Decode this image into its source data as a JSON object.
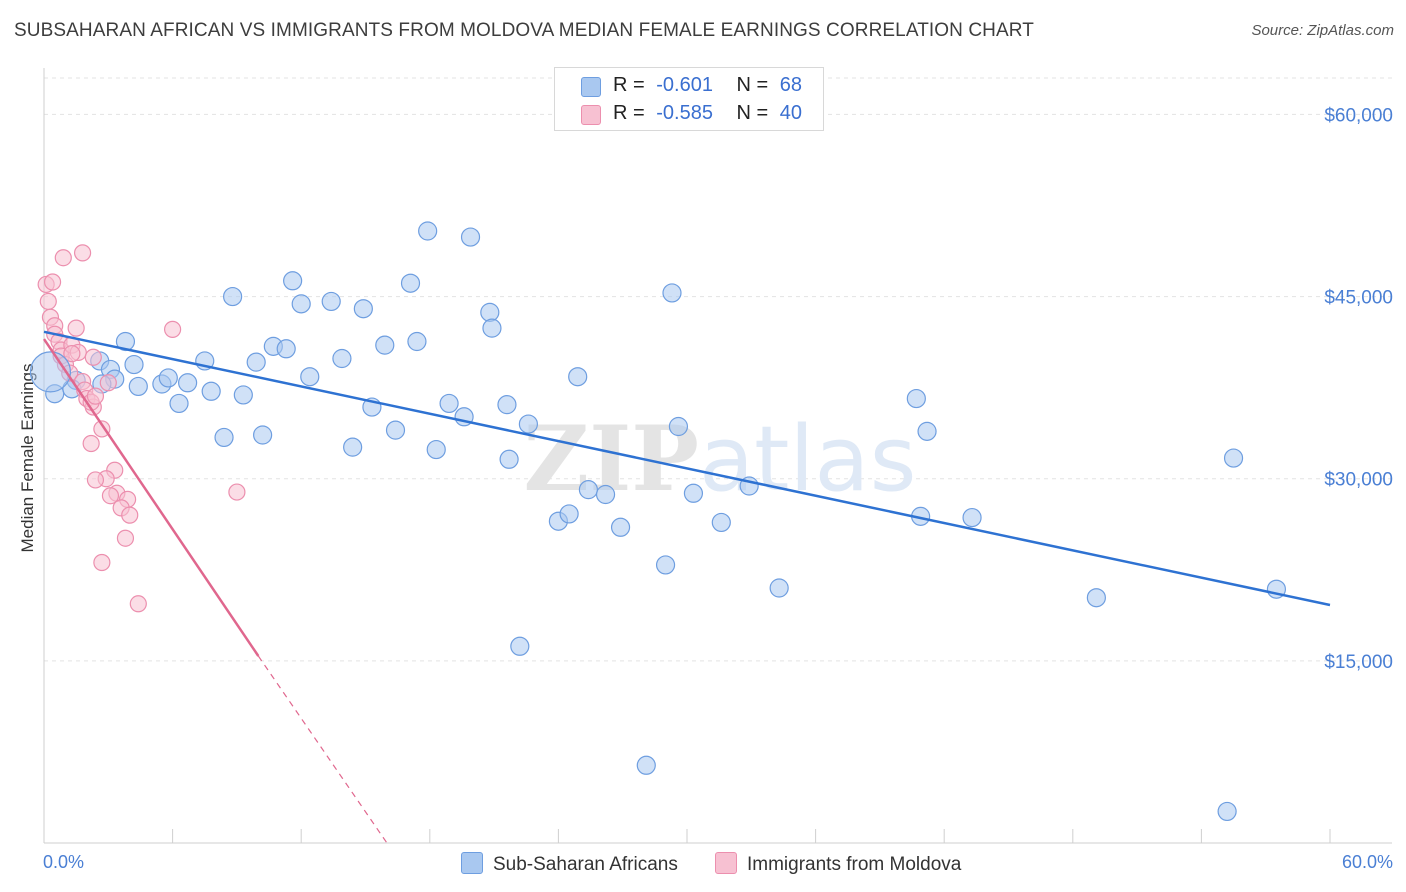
{
  "title": "SUBSAHARAN AFRICAN VS IMMIGRANTS FROM MOLDOVA MEDIAN FEMALE EARNINGS CORRELATION CHART",
  "source": "Source: ZipAtlas.com",
  "watermark": "ZIPatlas",
  "colors": {
    "blue_fill": "#a9c8f0",
    "blue_stroke": "#6e9ee0",
    "blue_line": "#2e72d2",
    "pink_fill": "#f7c1d2",
    "pink_stroke": "#ec8fae",
    "pink_line": "#e0678e",
    "tick_text": "#4a7fd4",
    "grid": "#e3e3e3"
  },
  "legend_top": {
    "rows": [
      {
        "r_label": "R =",
        "r_value": "-0.601",
        "n_label": "N =",
        "n_value": "68",
        "color": "#a9c8f0"
      },
      {
        "r_label": "R =",
        "r_value": "-0.585",
        "n_label": "N =",
        "n_value": "40",
        "color": "#f7c1d2"
      }
    ]
  },
  "legend_bottom": [
    {
      "label": "Sub-Saharan Africans",
      "color": "#a9c8f0"
    },
    {
      "label": "Immigrants from Moldova",
      "color": "#f7c1d2"
    }
  ],
  "chart_data": {
    "type": "scatter",
    "title": "SUBSAHARAN AFRICAN VS IMMIGRANTS FROM MOLDOVA MEDIAN FEMALE EARNINGS CORRELATION CHART",
    "xlabel": "",
    "ylabel": "Median Female Earnings",
    "xlim": [
      0,
      60
    ],
    "ylim": [
      0,
      63000
    ],
    "x_tick_labels": [
      "0.0%",
      "60.0%"
    ],
    "y_ticks": [
      15000,
      30000,
      45000,
      60000
    ],
    "y_tick_labels": [
      "$15,000",
      "$30,000",
      "$45,000",
      "$60,000"
    ],
    "grid": true,
    "series": [
      {
        "name": "Sub-Saharan Africans",
        "points": [
          [
            0.5,
            37000
          ],
          [
            1.5,
            38100
          ],
          [
            1.3,
            37400
          ],
          [
            2.6,
            39700
          ],
          [
            3.1,
            39000
          ],
          [
            3.3,
            38200
          ],
          [
            3.8,
            41300
          ],
          [
            4.2,
            39400
          ],
          [
            4.4,
            37600
          ],
          [
            5.5,
            37800
          ],
          [
            5.8,
            38300
          ],
          [
            6.3,
            36200
          ],
          [
            6.7,
            37900
          ],
          [
            7.5,
            39700
          ],
          [
            7.8,
            37200
          ],
          [
            8.4,
            33400
          ],
          [
            8.8,
            45000
          ],
          [
            9.3,
            36900
          ],
          [
            9.9,
            39600
          ],
          [
            10.2,
            33600
          ],
          [
            10.7,
            40900
          ],
          [
            11.3,
            40700
          ],
          [
            11.6,
            46300
          ],
          [
            12.0,
            44400
          ],
          [
            12.4,
            38400
          ],
          [
            13.4,
            44600
          ],
          [
            13.9,
            39900
          ],
          [
            14.4,
            32600
          ],
          [
            14.9,
            44000
          ],
          [
            15.3,
            35900
          ],
          [
            15.9,
            41000
          ],
          [
            16.4,
            34000
          ],
          [
            17.1,
            46100
          ],
          [
            17.4,
            41300
          ],
          [
            17.9,
            50400
          ],
          [
            18.3,
            32400
          ],
          [
            18.9,
            36200
          ],
          [
            19.6,
            35100
          ],
          [
            19.9,
            49900
          ],
          [
            20.8,
            43700
          ],
          [
            20.9,
            42400
          ],
          [
            21.6,
            36100
          ],
          [
            21.7,
            31600
          ],
          [
            22.6,
            34500
          ],
          [
            24.0,
            26500
          ],
          [
            24.5,
            27100
          ],
          [
            24.9,
            38400
          ],
          [
            25.4,
            29100
          ],
          [
            26.2,
            28700
          ],
          [
            26.9,
            26000
          ],
          [
            28.1,
            6400
          ],
          [
            29.0,
            22900
          ],
          [
            29.3,
            45300
          ],
          [
            29.6,
            34300
          ],
          [
            30.3,
            28800
          ],
          [
            31.6,
            26400
          ],
          [
            32.9,
            29400
          ],
          [
            34.3,
            21000
          ],
          [
            40.7,
            36600
          ],
          [
            40.9,
            26900
          ],
          [
            41.2,
            33900
          ],
          [
            43.3,
            26800
          ],
          [
            49.1,
            20200
          ],
          [
            55.5,
            31700
          ],
          [
            57.5,
            20900
          ],
          [
            55.2,
            2600
          ],
          [
            22.2,
            16200
          ],
          [
            2.7,
            37800
          ]
        ]
      },
      {
        "name": "Immigrants from Moldova",
        "points": [
          [
            0.1,
            46000
          ],
          [
            0.2,
            44600
          ],
          [
            0.3,
            43300
          ],
          [
            0.5,
            42600
          ],
          [
            0.5,
            41900
          ],
          [
            0.7,
            41300
          ],
          [
            0.8,
            40600
          ],
          [
            0.8,
            40100
          ],
          [
            1.0,
            39400
          ],
          [
            1.2,
            38700
          ],
          [
            1.3,
            41000
          ],
          [
            1.5,
            42400
          ],
          [
            1.6,
            40400
          ],
          [
            1.8,
            38000
          ],
          [
            1.9,
            37300
          ],
          [
            2.0,
            36600
          ],
          [
            2.3,
            35900
          ],
          [
            2.2,
            36300
          ],
          [
            1.3,
            40300
          ],
          [
            0.9,
            48200
          ],
          [
            1.8,
            48600
          ],
          [
            0.4,
            46200
          ],
          [
            2.3,
            40000
          ],
          [
            3.0,
            37900
          ],
          [
            2.4,
            36800
          ],
          [
            2.7,
            34100
          ],
          [
            2.2,
            32900
          ],
          [
            3.3,
            30700
          ],
          [
            2.9,
            30000
          ],
          [
            2.4,
            29900
          ],
          [
            3.4,
            28800
          ],
          [
            3.1,
            28600
          ],
          [
            3.9,
            28300
          ],
          [
            3.6,
            27600
          ],
          [
            4.0,
            27000
          ],
          [
            3.8,
            25100
          ],
          [
            2.7,
            23100
          ],
          [
            4.4,
            19700
          ],
          [
            6.0,
            42300
          ],
          [
            9.0,
            28900
          ]
        ]
      }
    ],
    "trend_lines": [
      {
        "series": "Sub-Saharan Africans",
        "x": [
          0,
          60
        ],
        "y": [
          42100,
          19600
        ]
      },
      {
        "series": "Immigrants from Moldova",
        "x": [
          0,
          10
        ],
        "y": [
          41500,
          15400
        ]
      },
      {
        "series": "Immigrants from Moldova (extrapolated)",
        "x": [
          10,
          16
        ],
        "y": [
          15400,
          0
        ]
      }
    ]
  }
}
